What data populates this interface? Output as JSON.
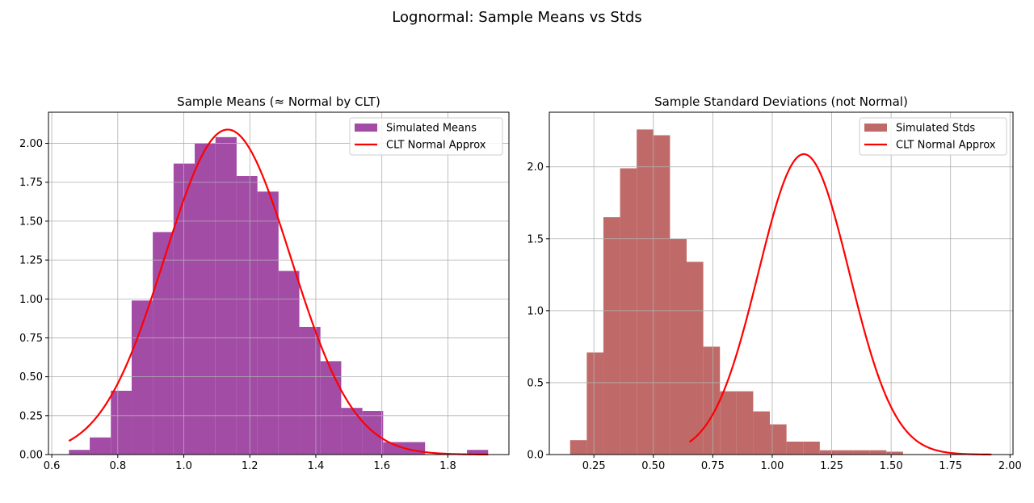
{
  "figure": {
    "suptitle": "Lognormal: Sample Means vs Stds"
  },
  "chart_data": [
    {
      "type": "histogram",
      "title": "Sample Means (≈ Normal by CLT)",
      "xlabel": "",
      "ylabel": "",
      "xlim": [
        0.59,
        1.985
      ],
      "ylim": [
        0,
        2.2
      ],
      "xticks": [
        0.6,
        0.8,
        1.0,
        1.2,
        1.4,
        1.6,
        1.8
      ],
      "xtick_labels": [
        "0.6",
        "0.8",
        "1.0",
        "1.2",
        "1.4",
        "1.6",
        "1.8"
      ],
      "yticks": [
        0,
        0.25,
        0.5,
        0.75,
        1.0,
        1.25,
        1.5,
        1.75,
        2.0
      ],
      "ytick_labels": [
        "0.00",
        "0.25",
        "0.50",
        "0.75",
        "1.00",
        "1.25",
        "1.50",
        "1.75",
        "2.00"
      ],
      "grid": true,
      "legend_position": "top-right",
      "bar_color": "#a34ca6",
      "line_color": "#ff0000",
      "series": [
        {
          "name": "Simulated Means",
          "kind": "bars",
          "bin_edges": [
            0.652,
            0.715,
            0.779,
            0.842,
            0.906,
            0.969,
            1.033,
            1.096,
            1.16,
            1.223,
            1.287,
            1.35,
            1.414,
            1.477,
            1.541,
            1.604,
            1.668,
            1.731,
            1.795,
            1.858,
            1.922
          ],
          "values": [
            0.03,
            0.11,
            0.41,
            0.99,
            1.43,
            1.87,
            2.0,
            2.04,
            1.79,
            1.69,
            1.18,
            0.82,
            0.6,
            0.3,
            0.28,
            0.08,
            0.08,
            0,
            0,
            0.03
          ]
        },
        {
          "name": "CLT Normal Approx",
          "kind": "line",
          "distribution": "normal",
          "mean": 1.133,
          "std": 0.191,
          "x_range": [
            0.652,
            1.922
          ]
        }
      ]
    },
    {
      "type": "histogram",
      "title": "Sample Standard Deviations (not Normal)",
      "xlabel": "",
      "ylabel": "",
      "xlim": [
        0.0625,
        2.0125
      ],
      "ylim": [
        0,
        2.38
      ],
      "xticks": [
        0.25,
        0.5,
        0.75,
        1.0,
        1.25,
        1.5,
        1.75,
        2.0
      ],
      "xtick_labels": [
        "0.25",
        "0.50",
        "0.75",
        "1.00",
        "1.25",
        "1.50",
        "1.75",
        "2.00"
      ],
      "yticks": [
        0,
        0.5,
        1.0,
        1.5,
        2.0
      ],
      "ytick_labels": [
        "0.0",
        "0.5",
        "1.0",
        "1.5",
        "2.0"
      ],
      "grid": true,
      "legend_position": "top-right",
      "bar_color": "#bf6a69",
      "line_color": "#ff0000",
      "series": [
        {
          "name": "Simulated Stds",
          "kind": "bars",
          "bin_edges": [
            0.15,
            0.22,
            0.29,
            0.36,
            0.43,
            0.5,
            0.57,
            0.64,
            0.71,
            0.78,
            0.85,
            0.92,
            0.99,
            1.06,
            1.13,
            1.2,
            1.27,
            1.34,
            1.41,
            1.48,
            1.55
          ],
          "values": [
            0.1,
            0.71,
            1.65,
            1.99,
            2.26,
            2.22,
            1.5,
            1.34,
            0.75,
            0.44,
            0.44,
            0.3,
            0.21,
            0.09,
            0.09,
            0.03,
            0.03,
            0.03,
            0.03,
            0.02
          ]
        },
        {
          "name": "CLT Normal Approx",
          "kind": "line",
          "distribution": "normal",
          "mean": 1.133,
          "std": 0.191,
          "x_range": [
            0.652,
            1.922
          ]
        }
      ]
    }
  ]
}
